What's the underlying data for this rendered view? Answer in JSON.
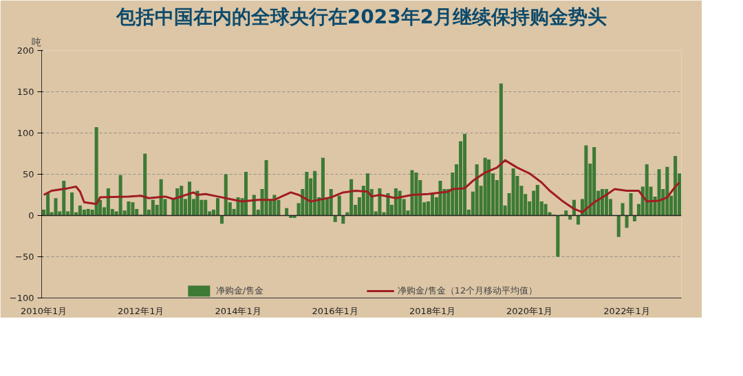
{
  "chart_data": {
    "type": "bar",
    "title": "包括中国在内的全球央行在2023年2月继续保持购金势头",
    "ylabel": "吨",
    "xlim": [
      "2009-12-16",
      "2023-02-16"
    ],
    "xticks": [
      {
        "value": "2010-01",
        "label": "2010年1月"
      },
      {
        "value": "2012-01",
        "label": "2012年1月"
      },
      {
        "value": "2014-01",
        "label": "2014年1月"
      },
      {
        "value": "2016-01",
        "label": "2016年1月"
      },
      {
        "value": "2018-01",
        "label": "2018年1月"
      },
      {
        "value": "2020-01",
        "label": "2020年1月"
      },
      {
        "value": "2022-01",
        "label": "2022年1月"
      }
    ],
    "ylim": [
      -100,
      200
    ],
    "yticks": [
      -100,
      -50,
      0,
      50,
      100,
      150,
      200
    ],
    "grid": "y",
    "legend": "bottom",
    "series": [
      {
        "name": "净购金/售金",
        "color": "#3d7a35",
        "x": [
          "2010-01",
          "2010-02",
          "2010-03",
          "2010-04",
          "2010-05",
          "2010-06",
          "2010-07",
          "2010-08",
          "2010-09",
          "2010-10",
          "2010-11",
          "2010-12",
          "2011-01",
          "2011-02",
          "2011-03",
          "2011-04",
          "2011-05",
          "2011-06",
          "2011-07",
          "2011-08",
          "2011-09",
          "2011-10",
          "2011-11",
          "2011-12",
          "2012-01",
          "2012-02",
          "2012-03",
          "2012-04",
          "2012-05",
          "2012-06",
          "2012-07",
          "2012-08",
          "2012-09",
          "2012-10",
          "2012-11",
          "2012-12",
          "2013-01",
          "2013-02",
          "2013-03",
          "2013-04",
          "2013-05",
          "2013-06",
          "2013-07",
          "2013-08",
          "2013-09",
          "2013-10",
          "2013-11",
          "2013-12",
          "2014-01",
          "2014-02",
          "2014-03",
          "2014-04",
          "2014-05",
          "2014-06",
          "2014-07",
          "2014-08",
          "2014-09",
          "2014-10",
          "2014-11",
          "2014-12",
          "2015-01",
          "2015-02",
          "2015-03",
          "2015-04",
          "2015-05",
          "2015-06",
          "2015-07",
          "2015-08",
          "2015-09",
          "2015-10",
          "2015-11",
          "2015-12",
          "2016-01",
          "2016-02",
          "2016-03",
          "2016-04",
          "2016-05",
          "2016-06",
          "2016-07",
          "2016-08",
          "2016-09",
          "2016-10",
          "2016-11",
          "2016-12",
          "2017-01",
          "2017-02",
          "2017-03",
          "2017-04",
          "2017-05",
          "2017-06",
          "2017-07",
          "2017-08",
          "2017-09",
          "2017-10",
          "2017-11",
          "2017-12",
          "2018-01",
          "2018-02",
          "2018-03",
          "2018-04",
          "2018-05",
          "2018-06",
          "2018-07",
          "2018-08",
          "2018-09",
          "2018-10",
          "2018-11",
          "2018-12",
          "2019-01",
          "2019-02",
          "2019-03",
          "2019-04",
          "2019-05",
          "2019-06",
          "2019-07",
          "2019-08",
          "2019-09",
          "2019-10",
          "2019-11",
          "2019-12",
          "2020-01",
          "2020-02",
          "2020-03",
          "2020-04",
          "2020-05",
          "2020-06",
          "2020-07",
          "2020-08",
          "2020-09",
          "2020-10",
          "2020-11",
          "2020-12",
          "2021-01",
          "2021-02",
          "2021-03",
          "2021-04",
          "2021-05",
          "2021-06",
          "2021-07",
          "2021-08",
          "2021-09",
          "2021-10",
          "2021-11",
          "2021-12",
          "2022-01",
          "2022-02",
          "2022-03",
          "2022-04",
          "2022-05",
          "2022-06",
          "2022-07",
          "2022-08",
          "2022-09",
          "2022-10",
          "2022-11",
          "2022-12",
          "2023-01",
          "2023-02"
        ],
        "values": [
          7,
          27,
          4,
          21,
          5,
          42,
          5,
          28,
          4,
          12,
          7,
          8,
          7,
          107,
          19,
          10,
          33,
          8,
          5,
          49,
          6,
          17,
          16,
          8,
          1,
          75,
          7,
          19,
          13,
          44,
          20,
          0,
          20,
          33,
          36,
          20,
          41,
          20,
          30,
          19,
          19,
          5,
          7,
          21,
          -10,
          50,
          16,
          8,
          22,
          21,
          53,
          0,
          25,
          7,
          32,
          67,
          19,
          25,
          19,
          0,
          9,
          -3,
          -3,
          15,
          32,
          53,
          45,
          54,
          22,
          70,
          22,
          32,
          -8,
          24,
          -10,
          4,
          44,
          13,
          22,
          36,
          51,
          32,
          5,
          33,
          4,
          27,
          13,
          33,
          30,
          20,
          6,
          55,
          52,
          43,
          16,
          17,
          27,
          22,
          42,
          32,
          32,
          52,
          62,
          90,
          99,
          7,
          29,
          62,
          36,
          70,
          68,
          51,
          43,
          160,
          12,
          27,
          57,
          48,
          36,
          26,
          17,
          30,
          37,
          17,
          14,
          4,
          1,
          -50,
          1,
          6,
          -5,
          19,
          -11,
          20,
          85,
          63,
          83,
          30,
          32,
          32,
          20,
          0,
          -26,
          15,
          -15,
          27,
          -7,
          14,
          35,
          62,
          35,
          23,
          56,
          32,
          59,
          24,
          72,
          51
        ]
      },
      {
        "name": "净购金/售金（12个月移动平均值）",
        "type": "line",
        "color": "#a01c22",
        "line_style": "solid",
        "x": [
          "2010-01",
          "2010-03",
          "2010-07",
          "2010-09",
          "2010-10",
          "2010-11",
          "2011-02",
          "2011-03",
          "2011-10",
          "2012-01",
          "2012-03",
          "2012-07",
          "2012-09",
          "2013-02",
          "2013-03",
          "2013-05",
          "2013-08",
          "2013-12",
          "2014-02",
          "2014-06",
          "2014-10",
          "2015-02",
          "2015-04",
          "2015-07",
          "2015-12",
          "2016-03",
          "2016-06",
          "2016-09",
          "2016-10",
          "2016-12",
          "2017-04",
          "2017-08",
          "2017-12",
          "2018-05",
          "2018-06",
          "2018-09",
          "2018-11",
          "2019-02",
          "2019-05",
          "2019-07",
          "2019-10",
          "2020-01",
          "2020-04",
          "2020-06",
          "2020-09",
          "2020-12",
          "2021-02",
          "2021-05",
          "2021-08",
          "2021-10",
          "2022-01",
          "2022-04",
          "2022-06",
          "2022-09",
          "2022-11",
          "2023-01",
          "2023-02"
        ],
        "values": [
          25,
          30,
          33,
          35,
          29,
          16,
          14,
          22,
          23,
          24,
          21,
          23,
          20,
          28,
          25,
          26,
          23,
          19,
          17,
          19,
          19,
          28,
          25,
          17,
          22,
          28,
          30,
          29,
          23,
          25,
          21,
          25,
          26,
          29,
          32,
          33,
          42,
          52,
          58,
          67,
          58,
          51,
          40,
          30,
          18,
          8,
          4,
          16,
          25,
          32,
          30,
          30,
          17,
          18,
          22,
          35,
          40
        ]
      }
    ]
  }
}
